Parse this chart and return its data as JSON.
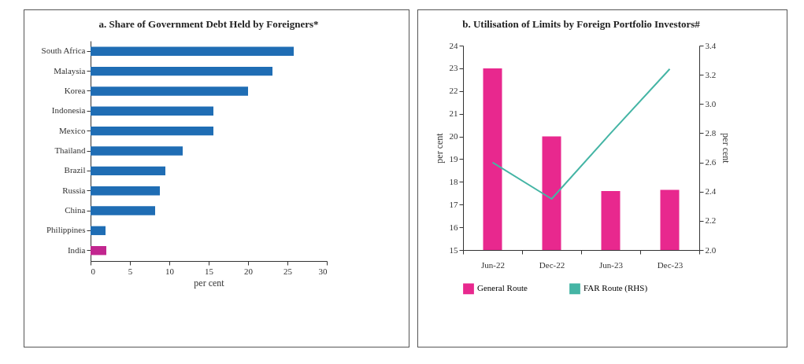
{
  "chart_data": [
    {
      "type": "bar",
      "orientation": "horizontal",
      "title": "a. Share of Government Debt Held by Foreigners*",
      "xlabel": "per cent",
      "categories": [
        "South Africa",
        "Malaysia",
        "Korea",
        "Indonesia",
        "Mexico",
        "Thailand",
        "Brazil",
        "Russia",
        "China",
        "Philippines",
        "India"
      ],
      "values": [
        25.8,
        23.1,
        20.0,
        15.6,
        15.6,
        11.7,
        9.5,
        8.8,
        8.2,
        1.9,
        2.0
      ],
      "colors": [
        "#1f6db4",
        "#1f6db4",
        "#1f6db4",
        "#1f6db4",
        "#1f6db4",
        "#1f6db4",
        "#1f6db4",
        "#1f6db4",
        "#1f6db4",
        "#1f6db4",
        "#c2268f"
      ],
      "xlim": [
        0,
        30
      ],
      "xticks": [
        0,
        5,
        10,
        15,
        20,
        25,
        30
      ],
      "grid": false
    },
    {
      "type": "bar",
      "title": "b. Utilisation of Limits by Foreign Portfolio Investors#",
      "ylabel": "per cent",
      "y2label": "per cent",
      "categories": [
        "Jun-22",
        "Dec-22",
        "Jun-23",
        "Dec-23"
      ],
      "series": [
        {
          "name": "General Route",
          "type": "bar",
          "color": "#e8288e",
          "values": [
            23.0,
            20.0,
            17.6,
            17.65
          ]
        },
        {
          "name": "FAR Route (RHS)",
          "type": "line",
          "axis": "y2",
          "color": "#45b5a5",
          "values": [
            2.6,
            2.35,
            2.8,
            3.24
          ]
        }
      ],
      "ylim": [
        15,
        24
      ],
      "yticks": [
        15,
        16,
        17,
        18,
        19,
        20,
        21,
        22,
        23,
        24
      ],
      "y2lim": [
        2.0,
        3.4
      ],
      "y2ticks": [
        {
          "value": 2.0,
          "label": "2.0"
        },
        {
          "value": 2.2,
          "label": "2.2"
        },
        {
          "value": 2.4,
          "label": "2.4"
        },
        {
          "value": 2.6,
          "label": "2.6"
        },
        {
          "value": 2.8,
          "label": "2.8"
        },
        {
          "value": 3.0,
          "label": "3.0"
        },
        {
          "value": 3.2,
          "label": "3.2"
        },
        {
          "value": 3.4,
          "label": "3.4"
        }
      ],
      "legend": "bottom",
      "grid": false
    }
  ]
}
